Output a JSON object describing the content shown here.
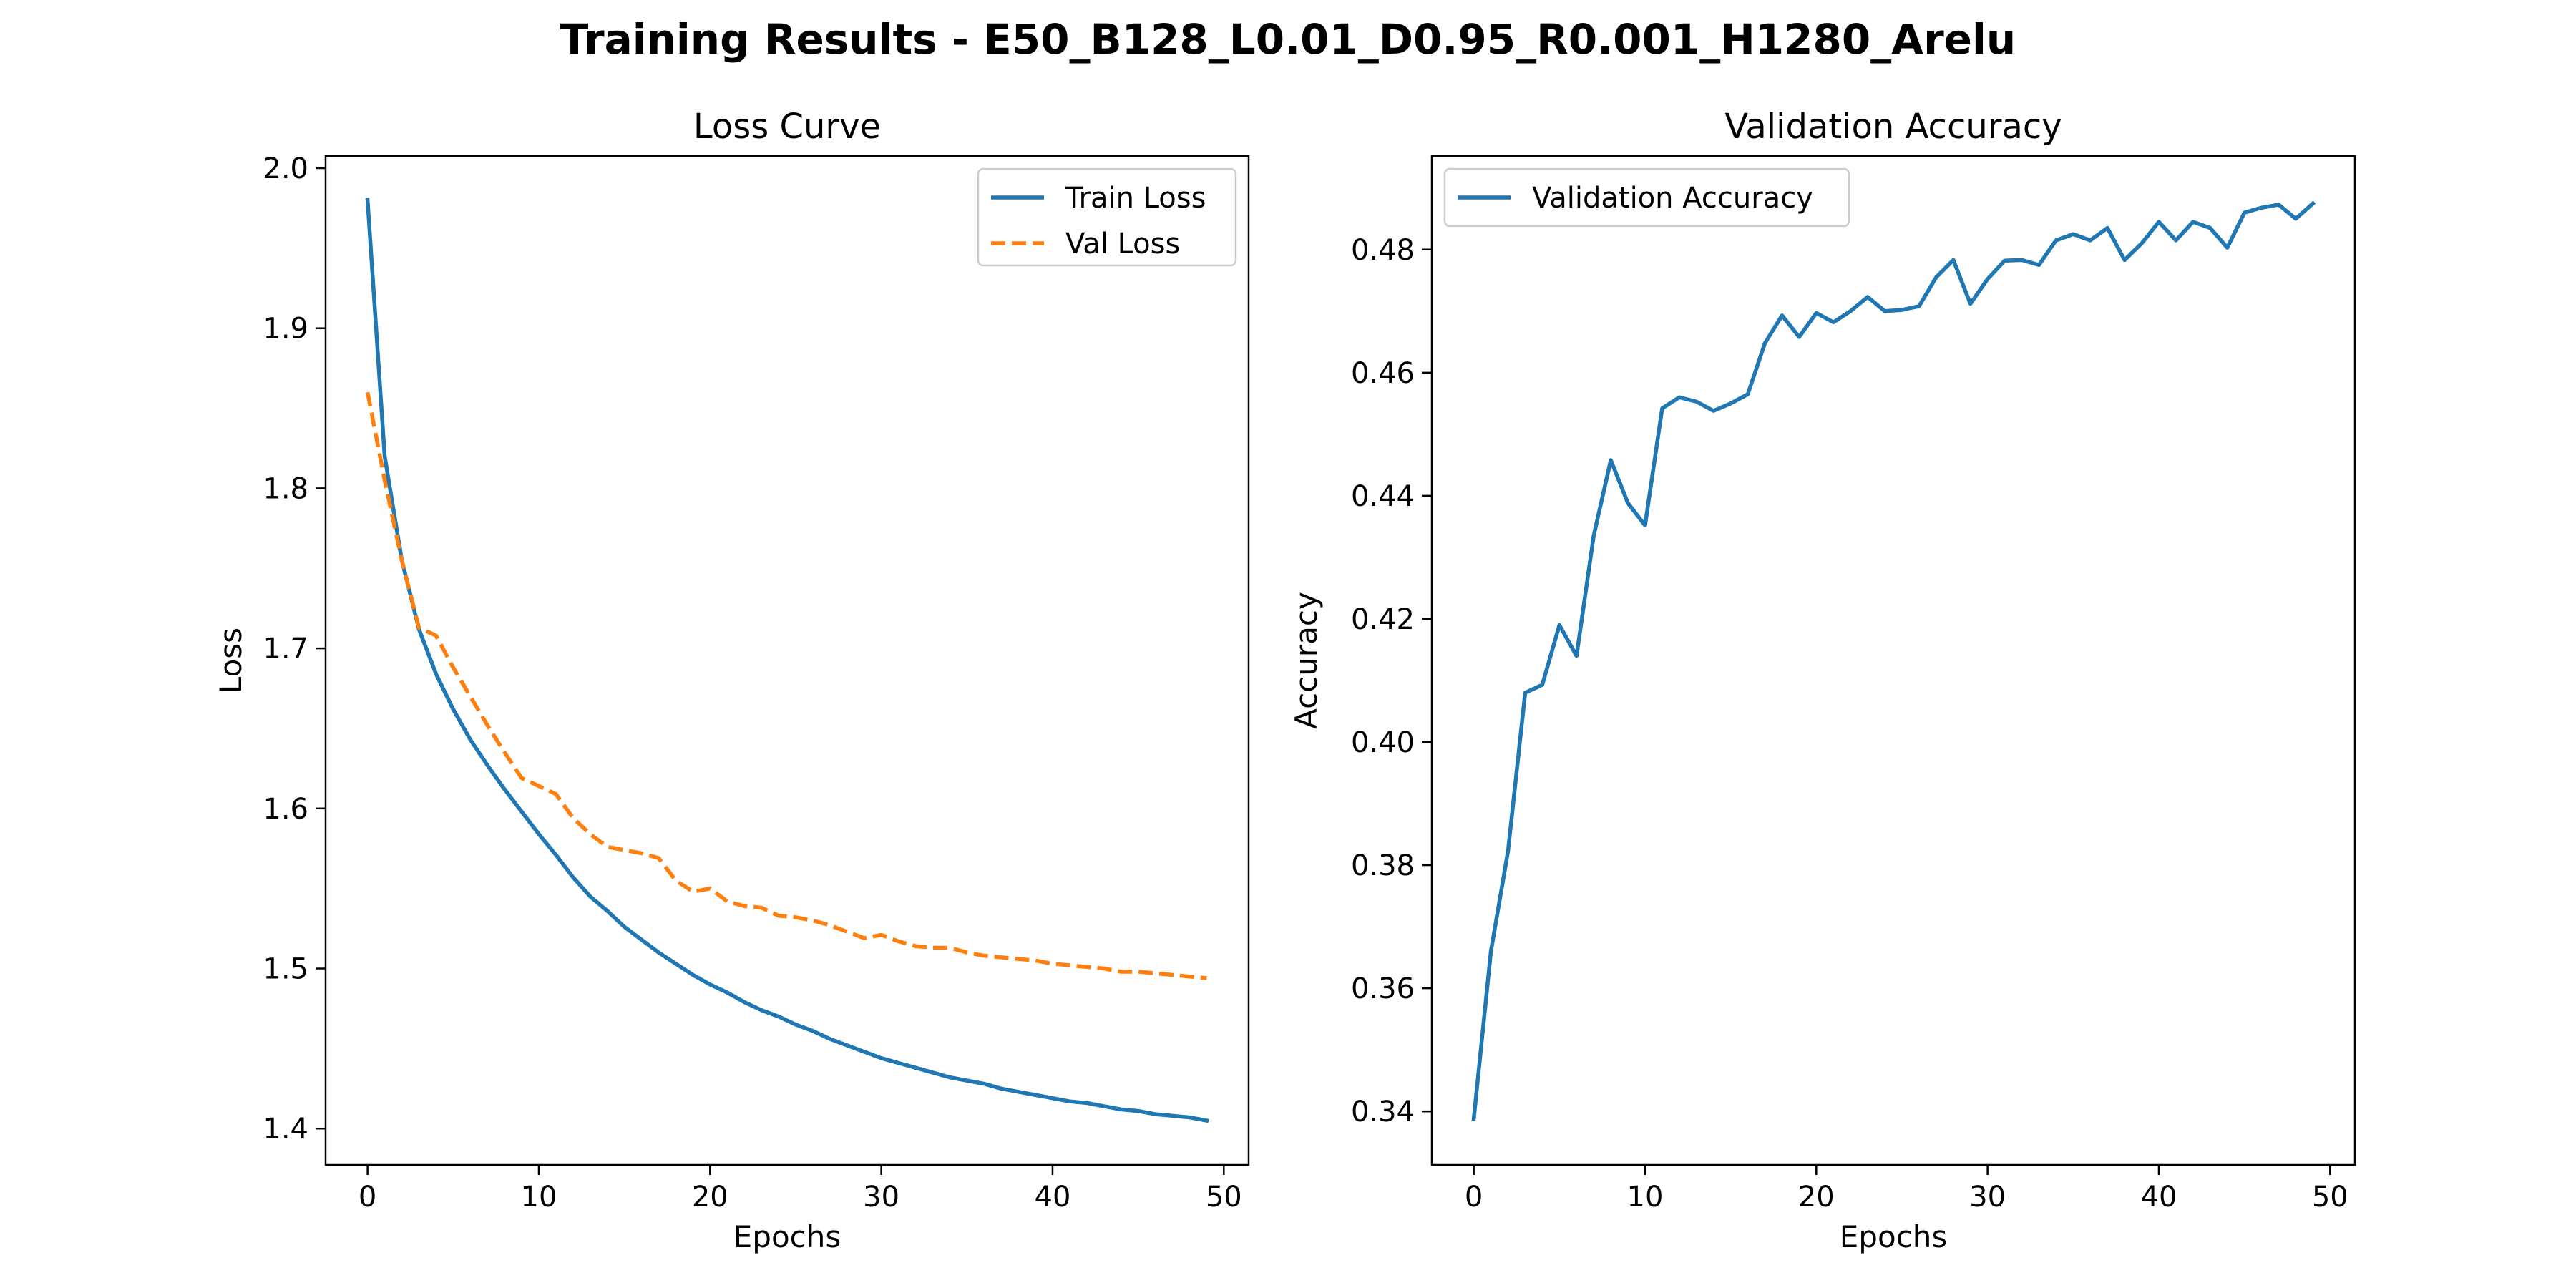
{
  "figure": {
    "title": "Training Results - E50_B128_L0.01_D0.95_R0.001_H1280_Arelu"
  },
  "colors": {
    "train": "#1f77b4",
    "val": "#ff7f0e",
    "axis": "#000000",
    "legend_border": "#cccccc"
  },
  "chart_data": [
    {
      "type": "line",
      "title": "Loss Curve",
      "xlabel": "Epochs",
      "ylabel": "Loss",
      "xlim": [
        -2.45,
        51.45
      ],
      "ylim": [
        1.3773,
        2.0076
      ],
      "xticks": [
        0,
        10,
        20,
        30,
        40,
        50
      ],
      "yticks": [
        1.4,
        1.5,
        1.6,
        1.7,
        1.8,
        1.9,
        2.0
      ],
      "ytick_format": 1,
      "grid": false,
      "legend": "upper-right",
      "x": [
        0,
        1,
        2,
        3,
        4,
        5,
        6,
        7,
        8,
        9,
        10,
        11,
        12,
        13,
        14,
        15,
        16,
        17,
        18,
        19,
        20,
        21,
        22,
        23,
        24,
        25,
        26,
        27,
        28,
        29,
        30,
        31,
        32,
        33,
        34,
        35,
        36,
        37,
        38,
        39,
        40,
        41,
        42,
        43,
        44,
        45,
        46,
        47,
        48,
        49
      ],
      "series": [
        {
          "name": "Train Loss",
          "style": "solid",
          "values": [
            1.98,
            1.82,
            1.755,
            1.712,
            1.684,
            1.662,
            1.643,
            1.627,
            1.612,
            1.598,
            1.584,
            1.571,
            1.557,
            1.545,
            1.536,
            1.526,
            1.518,
            1.51,
            1.503,
            1.496,
            1.49,
            1.485,
            1.479,
            1.474,
            1.47,
            1.465,
            1.461,
            1.456,
            1.452,
            1.448,
            1.444,
            1.441,
            1.438,
            1.435,
            1.432,
            1.43,
            1.428,
            1.425,
            1.423,
            1.421,
            1.419,
            1.417,
            1.416,
            1.414,
            1.412,
            1.411,
            1.409,
            1.408,
            1.407,
            1.405
          ]
        },
        {
          "name": "Val Loss",
          "style": "dashed",
          "values": [
            1.86,
            1.805,
            1.755,
            1.713,
            1.708,
            1.688,
            1.67,
            1.652,
            1.635,
            1.619,
            1.614,
            1.609,
            1.594,
            1.584,
            1.576,
            1.574,
            1.572,
            1.569,
            1.555,
            1.548,
            1.55,
            1.542,
            1.539,
            1.538,
            1.533,
            1.532,
            1.53,
            1.527,
            1.523,
            1.519,
            1.521,
            1.517,
            1.514,
            1.513,
            1.513,
            1.51,
            1.508,
            1.507,
            1.506,
            1.505,
            1.503,
            1.502,
            1.501,
            1.5,
            1.498,
            1.498,
            1.497,
            1.496,
            1.495,
            1.494
          ]
        }
      ]
    },
    {
      "type": "line",
      "title": "Validation Accuracy",
      "xlabel": "Epochs",
      "ylabel": "Accuracy",
      "xlim": [
        -2.45,
        51.45
      ],
      "ylim": [
        0.3313,
        0.4952
      ],
      "xticks": [
        0,
        10,
        20,
        30,
        40,
        50
      ],
      "yticks": [
        0.34,
        0.36,
        0.38,
        0.4,
        0.42,
        0.44,
        0.46,
        0.48
      ],
      "ytick_format": 2,
      "grid": false,
      "legend": "upper-left",
      "x": [
        0,
        1,
        2,
        3,
        4,
        5,
        6,
        7,
        8,
        9,
        10,
        11,
        12,
        13,
        14,
        15,
        16,
        17,
        18,
        19,
        20,
        21,
        22,
        23,
        24,
        25,
        26,
        27,
        28,
        29,
        30,
        31,
        32,
        33,
        34,
        35,
        36,
        37,
        38,
        39,
        40,
        41,
        42,
        43,
        44,
        45,
        46,
        47,
        48,
        49
      ],
      "series": [
        {
          "name": "Validation Accuracy",
          "style": "solid",
          "values": [
            0.3388,
            0.366,
            0.3823,
            0.408,
            0.4093,
            0.419,
            0.414,
            0.4335,
            0.4458,
            0.4388,
            0.4352,
            0.4542,
            0.456,
            0.4553,
            0.4538,
            0.455,
            0.4565,
            0.4648,
            0.4693,
            0.4658,
            0.4697,
            0.4682,
            0.47,
            0.4723,
            0.47,
            0.4702,
            0.4708,
            0.4755,
            0.4783,
            0.4712,
            0.4752,
            0.4782,
            0.4783,
            0.4775,
            0.4815,
            0.4825,
            0.4815,
            0.4835,
            0.4783,
            0.481,
            0.4845,
            0.4815,
            0.4845,
            0.4835,
            0.4803,
            0.486,
            0.4868,
            0.4873,
            0.485,
            0.4875
          ]
        }
      ]
    }
  ]
}
